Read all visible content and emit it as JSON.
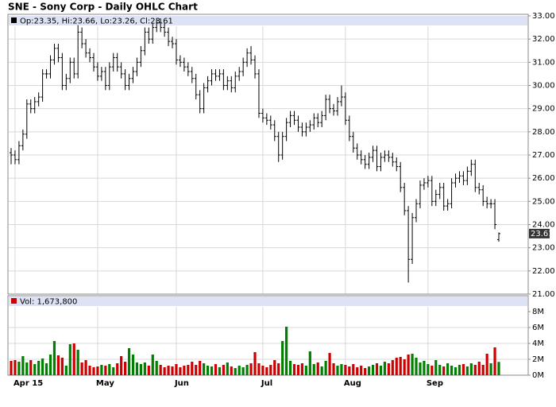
{
  "chart_data": {
    "type": "ohlc",
    "title": "SNE - Sony Corp - Daily OHLC Chart",
    "legend": "Op:23.35, Hi:23.66, Lo:23.26, Cl:23.61",
    "bar_color": "#000000",
    "up_color": "#008000",
    "down_color": "#cc0000",
    "grid": true,
    "categories": [
      null,
      "Apr 15",
      null,
      null,
      null,
      null,
      null,
      null,
      null,
      null,
      null,
      null,
      null,
      null,
      null,
      null,
      null,
      null,
      null,
      null,
      null,
      null,
      "May",
      null,
      null,
      null,
      null,
      null,
      null,
      null,
      null,
      null,
      null,
      null,
      null,
      null,
      null,
      null,
      null,
      null,
      null,
      null,
      "Jun",
      null,
      null,
      null,
      null,
      null,
      null,
      null,
      null,
      null,
      null,
      null,
      null,
      null,
      null,
      null,
      null,
      null,
      null,
      null,
      null,
      null,
      "Jul",
      null,
      null,
      null,
      null,
      null,
      null,
      null,
      null,
      null,
      null,
      null,
      null,
      null,
      null,
      null,
      null,
      null,
      null,
      null,
      null,
      "Aug",
      null,
      null,
      null,
      null,
      null,
      null,
      null,
      null,
      null,
      null,
      null,
      null,
      null,
      null,
      null,
      null,
      null,
      null,
      null,
      null,
      "Sep",
      null,
      null,
      null,
      null,
      null,
      null,
      null,
      null,
      null,
      null,
      null,
      null,
      null,
      null,
      null,
      null,
      null,
      null
    ],
    "open": [
      27.1,
      27.0,
      26.8,
      27.4,
      27.9,
      29.2,
      29.0,
      29.3,
      29.5,
      30.5,
      30.5,
      31.1,
      31.6,
      31.2,
      30.0,
      30.3,
      31.0,
      30.5,
      32.3,
      31.8,
      31.4,
      31.2,
      30.8,
      30.4,
      30.6,
      30.0,
      30.8,
      31.2,
      30.8,
      30.5,
      30.0,
      30.3,
      30.6,
      31.0,
      31.5,
      32.3,
      32.0,
      32.5,
      32.7,
      32.5,
      32.3,
      31.9,
      31.8,
      31.1,
      31.0,
      30.8,
      30.6,
      30.3,
      29.6,
      29.0,
      29.9,
      30.2,
      30.5,
      30.4,
      30.5,
      30.0,
      30.2,
      29.9,
      30.4,
      30.6,
      31.0,
      31.4,
      31.1,
      30.5,
      28.8,
      28.6,
      28.5,
      28.3,
      27.8,
      27.0,
      27.8,
      28.4,
      28.7,
      28.5,
      28.2,
      28.0,
      28.2,
      28.3,
      28.6,
      28.4,
      28.7,
      29.4,
      29.0,
      28.9,
      29.3,
      29.5,
      28.5,
      27.8,
      27.3,
      27.0,
      26.8,
      26.6,
      26.9,
      27.2,
      26.5,
      26.9,
      27.0,
      26.9,
      26.7,
      26.5,
      25.6,
      24.6,
      22.5,
      24.3,
      24.9,
      25.7,
      25.8,
      25.9,
      25.0,
      25.3,
      25.6,
      24.8,
      24.9,
      25.8,
      26.0,
      26.1,
      25.9,
      26.3,
      26.6,
      25.6,
      25.5,
      25.0,
      24.9,
      24.9,
      23.35
    ],
    "high": [
      27.3,
      27.2,
      27.6,
      28.1,
      29.4,
      29.4,
      29.5,
      29.7,
      30.7,
      30.7,
      31.3,
      31.8,
      31.8,
      31.4,
      30.5,
      31.2,
      31.2,
      32.6,
      32.5,
      32.0,
      31.6,
      31.4,
      31.0,
      30.8,
      30.8,
      31.0,
      31.4,
      31.4,
      31.0,
      30.7,
      30.5,
      30.8,
      31.2,
      31.7,
      32.5,
      32.5,
      32.7,
      32.9,
      32.9,
      32.7,
      32.5,
      32.1,
      32.0,
      31.3,
      31.2,
      31.0,
      30.8,
      30.5,
      29.8,
      30.1,
      30.4,
      30.7,
      30.7,
      30.7,
      30.7,
      30.4,
      30.4,
      30.6,
      30.8,
      31.2,
      31.6,
      31.7,
      31.3,
      30.7,
      29.0,
      28.8,
      28.7,
      28.5,
      28.0,
      28.0,
      28.6,
      28.9,
      28.9,
      28.7,
      28.4,
      28.4,
      28.5,
      28.8,
      28.8,
      28.9,
      29.6,
      29.6,
      29.2,
      29.5,
      30.0,
      29.7,
      28.7,
      28.0,
      27.5,
      27.2,
      27.0,
      27.1,
      27.4,
      27.4,
      27.1,
      27.2,
      27.2,
      27.1,
      26.9,
      26.7,
      25.8,
      24.8,
      24.5,
      25.1,
      25.9,
      26.0,
      26.1,
      26.1,
      25.5,
      25.8,
      25.8,
      25.1,
      26.0,
      26.2,
      26.3,
      26.3,
      26.5,
      26.8,
      26.8,
      25.8,
      25.7,
      25.2,
      25.1,
      25.1,
      23.66
    ],
    "low": [
      26.6,
      26.6,
      26.6,
      27.2,
      27.7,
      28.8,
      28.8,
      29.1,
      29.3,
      30.3,
      30.3,
      30.9,
      31.0,
      29.8,
      29.8,
      30.1,
      30.3,
      30.3,
      31.6,
      31.2,
      31.0,
      30.6,
      30.2,
      30.2,
      29.8,
      29.8,
      30.6,
      30.6,
      30.3,
      29.8,
      29.8,
      30.1,
      30.4,
      30.8,
      31.3,
      31.8,
      31.8,
      32.3,
      32.3,
      32.1,
      31.7,
      31.6,
      30.9,
      30.8,
      30.6,
      30.4,
      30.1,
      29.4,
      28.8,
      28.8,
      29.7,
      30.0,
      30.2,
      30.2,
      29.8,
      29.8,
      29.7,
      29.7,
      30.2,
      30.4,
      30.8,
      30.9,
      30.3,
      28.6,
      28.4,
      28.3,
      28.1,
      27.6,
      26.7,
      26.8,
      27.6,
      28.2,
      28.3,
      28.0,
      27.8,
      27.8,
      28.0,
      28.1,
      28.2,
      28.2,
      28.5,
      28.8,
      28.7,
      28.7,
      29.1,
      28.3,
      27.6,
      27.1,
      26.8,
      26.6,
      26.4,
      26.4,
      26.7,
      26.3,
      26.3,
      26.7,
      26.7,
      26.5,
      26.3,
      25.4,
      24.4,
      21.5,
      22.3,
      24.1,
      24.7,
      25.5,
      25.6,
      24.8,
      24.8,
      25.1,
      24.6,
      24.6,
      24.7,
      25.6,
      25.8,
      25.7,
      25.7,
      26.1,
      25.4,
      25.3,
      24.8,
      24.7,
      24.7,
      23.8,
      23.26
    ],
    "close": [
      27.0,
      26.8,
      27.4,
      27.9,
      29.2,
      29.0,
      29.3,
      29.5,
      30.5,
      30.5,
      31.1,
      31.6,
      31.2,
      30.0,
      30.3,
      31.0,
      30.5,
      32.3,
      31.8,
      31.4,
      31.2,
      30.8,
      30.4,
      30.6,
      30.0,
      30.8,
      31.2,
      30.8,
      30.5,
      30.0,
      30.3,
      30.6,
      31.0,
      31.5,
      32.3,
      32.0,
      32.5,
      32.7,
      32.5,
      32.3,
      31.9,
      31.8,
      31.1,
      31.0,
      30.8,
      30.6,
      30.3,
      29.6,
      29.0,
      29.9,
      30.2,
      30.5,
      30.4,
      30.5,
      30.0,
      30.2,
      29.9,
      30.4,
      30.6,
      31.0,
      31.4,
      31.1,
      30.5,
      28.8,
      28.6,
      28.5,
      28.3,
      27.8,
      27.0,
      27.8,
      28.4,
      28.7,
      28.5,
      28.2,
      28.0,
      28.2,
      28.3,
      28.6,
      28.4,
      28.7,
      29.4,
      29.0,
      28.9,
      29.3,
      29.5,
      28.5,
      27.8,
      27.3,
      27.0,
      26.8,
      26.6,
      26.9,
      27.2,
      26.5,
      26.9,
      27.0,
      26.9,
      26.7,
      26.5,
      25.6,
      24.6,
      22.5,
      24.3,
      24.9,
      25.7,
      25.8,
      25.9,
      25.0,
      25.3,
      25.6,
      24.8,
      24.9,
      25.8,
      26.0,
      26.1,
      25.9,
      26.3,
      26.6,
      25.6,
      25.5,
      25.0,
      24.9,
      24.9,
      24.0,
      23.61
    ],
    "ylim": [
      21,
      33
    ],
    "yticks": [
      {
        "value": 21,
        "label": "21.00"
      },
      {
        "value": 22,
        "label": "22.00"
      },
      {
        "value": 23,
        "label": "23.00"
      },
      {
        "value": 24,
        "label": "24.00"
      },
      {
        "value": 25,
        "label": "25.00"
      },
      {
        "value": 26,
        "label": "26.00"
      },
      {
        "value": 27,
        "label": "27.00"
      },
      {
        "value": 28,
        "label": "28.00"
      },
      {
        "value": 29,
        "label": "29.00"
      },
      {
        "value": 30,
        "label": "30.00"
      },
      {
        "value": 31,
        "label": "31.00"
      },
      {
        "value": 32,
        "label": "32.00"
      },
      {
        "value": 33,
        "label": "33.00"
      }
    ],
    "volume": {
      "label": "Vol: 1,673,800",
      "color": "#cc0000",
      "values": [
        1.8,
        1.9,
        1.7,
        2.4,
        1.6,
        1.9,
        1.4,
        1.8,
        2.1,
        1.5,
        2.6,
        4.3,
        2.5,
        2.2,
        1.2,
        3.9,
        4.0,
        3.2,
        1.6,
        1.9,
        1.2,
        1.0,
        1.1,
        1.3,
        1.2,
        1.4,
        1.0,
        1.5,
        2.4,
        1.7,
        3.4,
        2.6,
        1.6,
        1.4,
        1.6,
        1.2,
        2.6,
        1.8,
        1.3,
        1.0,
        1.2,
        1.1,
        1.4,
        1.0,
        1.2,
        1.3,
        1.7,
        1.3,
        1.8,
        1.5,
        1.2,
        1.1,
        1.4,
        1.0,
        1.3,
        1.6,
        1.1,
        0.9,
        1.2,
        1.0,
        1.3,
        1.5,
        2.9,
        1.5,
        1.2,
        1.0,
        1.3,
        1.9,
        1.5,
        4.3,
        6.1,
        1.8,
        1.4,
        1.3,
        1.5,
        1.2,
        3.0,
        1.4,
        1.6,
        1.1,
        1.8,
        2.8,
        1.5,
        1.2,
        1.4,
        1.3,
        1.1,
        1.4,
        1.0,
        1.2,
        0.9,
        1.1,
        1.3,
        1.5,
        1.2,
        1.7,
        1.5,
        1.9,
        2.2,
        2.3,
        2.0,
        2.6,
        2.7,
        2.2,
        1.6,
        1.8,
        1.4,
        1.2,
        1.9,
        1.3,
        1.1,
        1.5,
        1.2,
        1.0,
        1.3,
        1.4,
        1.1,
        1.5,
        1.3,
        1.7,
        1.3,
        2.7,
        1.5,
        3.5,
        1.6738
      ],
      "ylim": [
        0,
        8
      ],
      "yticks": [
        {
          "value": 0,
          "label": "0M"
        },
        {
          "value": 2,
          "label": "2M"
        },
        {
          "value": 4,
          "label": "4M"
        },
        {
          "value": 6,
          "label": "6M"
        },
        {
          "value": 8,
          "label": "8M"
        }
      ]
    }
  }
}
